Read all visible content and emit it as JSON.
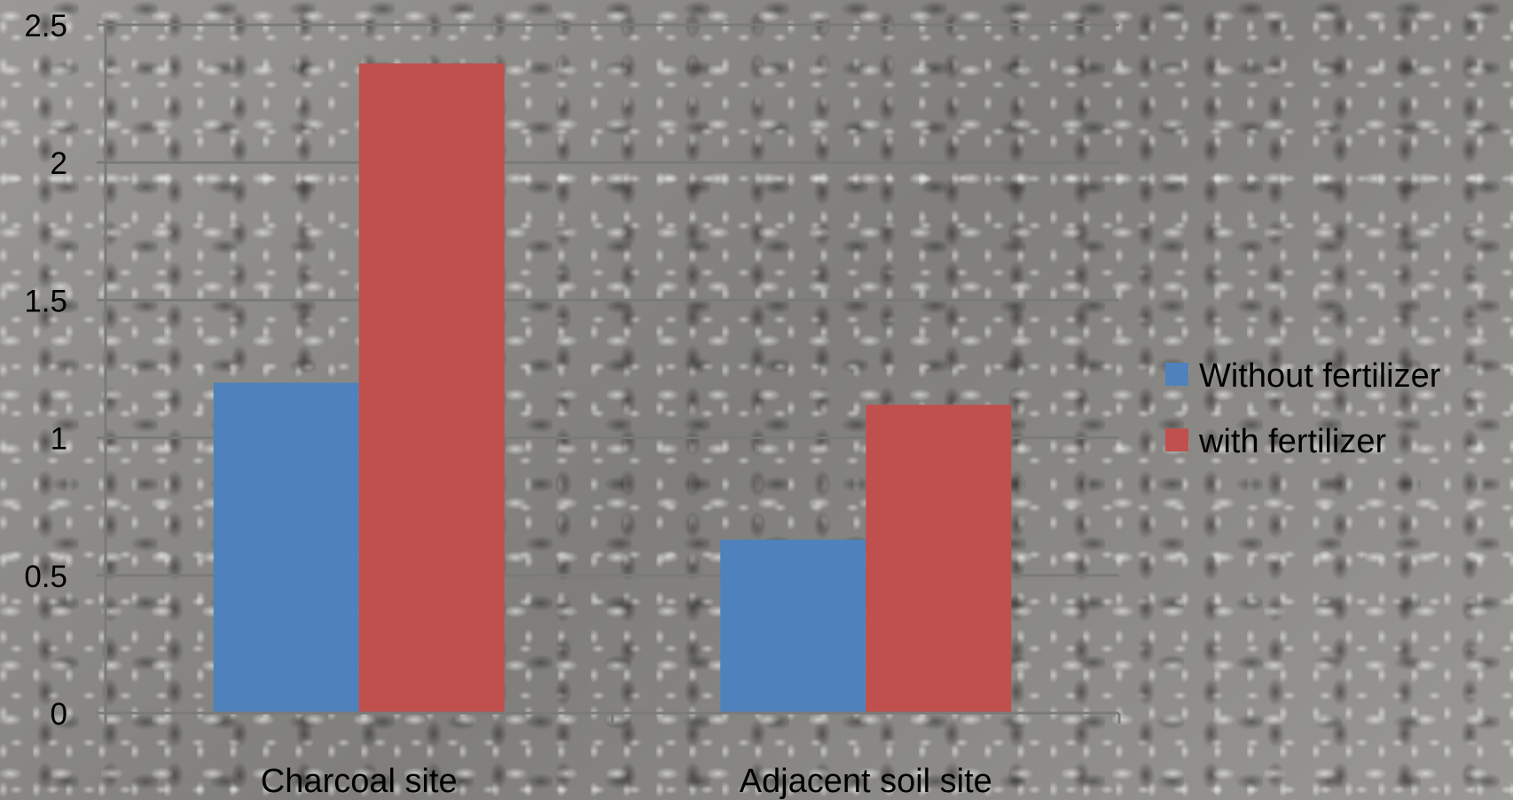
{
  "chart_data": {
    "type": "bar",
    "title": "",
    "xlabel": "",
    "ylabel": "",
    "categories": [
      "Charcoal site",
      "Adjacent soil site"
    ],
    "series": [
      {
        "name": "Without fertilizer",
        "values": [
          1.2,
          0.63
        ],
        "color": "#4f81bd"
      },
      {
        "name": "with fertilizer",
        "values": [
          2.36,
          1.12
        ],
        "color": "#c0504d"
      }
    ],
    "ylim": [
      0,
      2.5
    ],
    "yticks": [
      "0",
      "0.5",
      "1",
      "1.5",
      "2",
      "2.5"
    ],
    "grid": true,
    "legend_position": "right"
  }
}
